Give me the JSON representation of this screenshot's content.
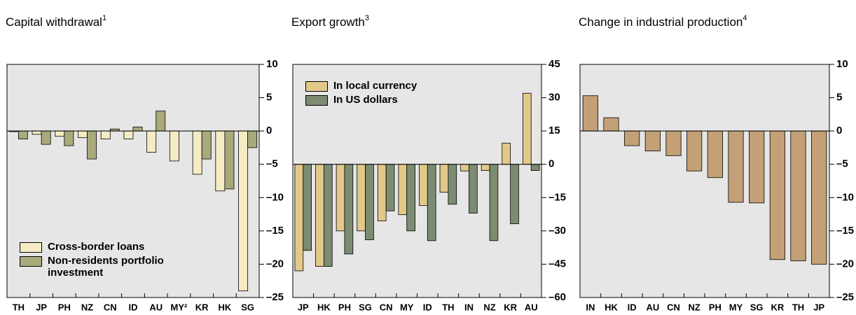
{
  "chart_data": [
    {
      "type": "bar",
      "title": "Capital withdrawal",
      "title_sup": "1",
      "categories": [
        "TH",
        "JP",
        "PH",
        "NZ",
        "CN",
        "ID",
        "AU",
        "MY²",
        "KR",
        "HK",
        "SG"
      ],
      "series": [
        {
          "name": "Cross-border loans",
          "color": "#f5ebc4",
          "values": [
            -0.1,
            -0.5,
            -0.8,
            -1,
            -1.2,
            -1.2,
            -3.2,
            -4.5,
            -6.5,
            -9,
            -24
          ]
        },
        {
          "name": "Non-residents portfolio investment",
          "color": "#a9aa7c",
          "values": [
            -1.2,
            -2,
            -2.2,
            -4.2,
            0.3,
            0.6,
            3,
            null,
            -4.2,
            -8.7,
            -2.5
          ]
        }
      ],
      "ylim": [
        -25,
        10
      ],
      "yticks": [
        {
          "value": -25,
          "label": "–25"
        },
        {
          "value": -20,
          "label": "–20"
        },
        {
          "value": -15,
          "label": "–15"
        },
        {
          "value": -10,
          "label": "–10"
        },
        {
          "value": -5,
          "label": "–5"
        },
        0,
        5,
        10
      ],
      "legend": "lower left"
    },
    {
      "type": "bar",
      "title": "Export growth",
      "title_sup": "3",
      "categories": [
        "JP",
        "HK",
        "PH",
        "SG",
        "CN",
        "MY",
        "ID",
        "TH",
        "IN",
        "NZ",
        "KR",
        "AU"
      ],
      "series": [
        {
          "name": "In local currency",
          "color": "#e2c98a",
          "values": [
            -48,
            -46,
            -30,
            -30,
            -25.5,
            -22.7,
            -18.6,
            -12.6,
            -3,
            -2.8,
            9.5,
            32
          ]
        },
        {
          "name": "In US dollars",
          "color": "#7b8c72",
          "values": [
            -38.8,
            -46,
            -40.4,
            -34,
            -21,
            -30,
            -34.4,
            -18,
            -22,
            -34.4,
            -26.8,
            -2.8
          ]
        }
      ],
      "ylim": [
        -60,
        45
      ],
      "yticks": [
        {
          "value": -60,
          "label": "–60"
        },
        {
          "value": -45,
          "label": "–45"
        },
        {
          "value": -30,
          "label": "–30"
        },
        {
          "value": -15,
          "label": "–15"
        },
        0,
        15,
        30,
        45
      ],
      "legend": "upper left"
    },
    {
      "type": "bar",
      "title": "Change in industrial production",
      "title_sup": "4",
      "categories": [
        "IN",
        "HK",
        "ID",
        "AU",
        "CN",
        "NZ",
        "PH",
        "MY",
        "SG",
        "KR",
        "TH",
        "JP"
      ],
      "series": [
        {
          "color": "#c4a076",
          "values": [
            5.3,
            2,
            -2.2,
            -3,
            -3.7,
            -6,
            -7,
            -10.7,
            -10.8,
            -19.3,
            -19.5,
            -20
          ]
        }
      ],
      "ylim": [
        -25,
        10
      ],
      "yticks": [
        {
          "value": -25,
          "label": "–25"
        },
        {
          "value": -20,
          "label": "–20"
        },
        {
          "value": -15,
          "label": "–15"
        },
        {
          "value": -10,
          "label": "–10"
        },
        {
          "value": -5,
          "label": "–5"
        },
        0,
        5,
        10
      ]
    }
  ]
}
